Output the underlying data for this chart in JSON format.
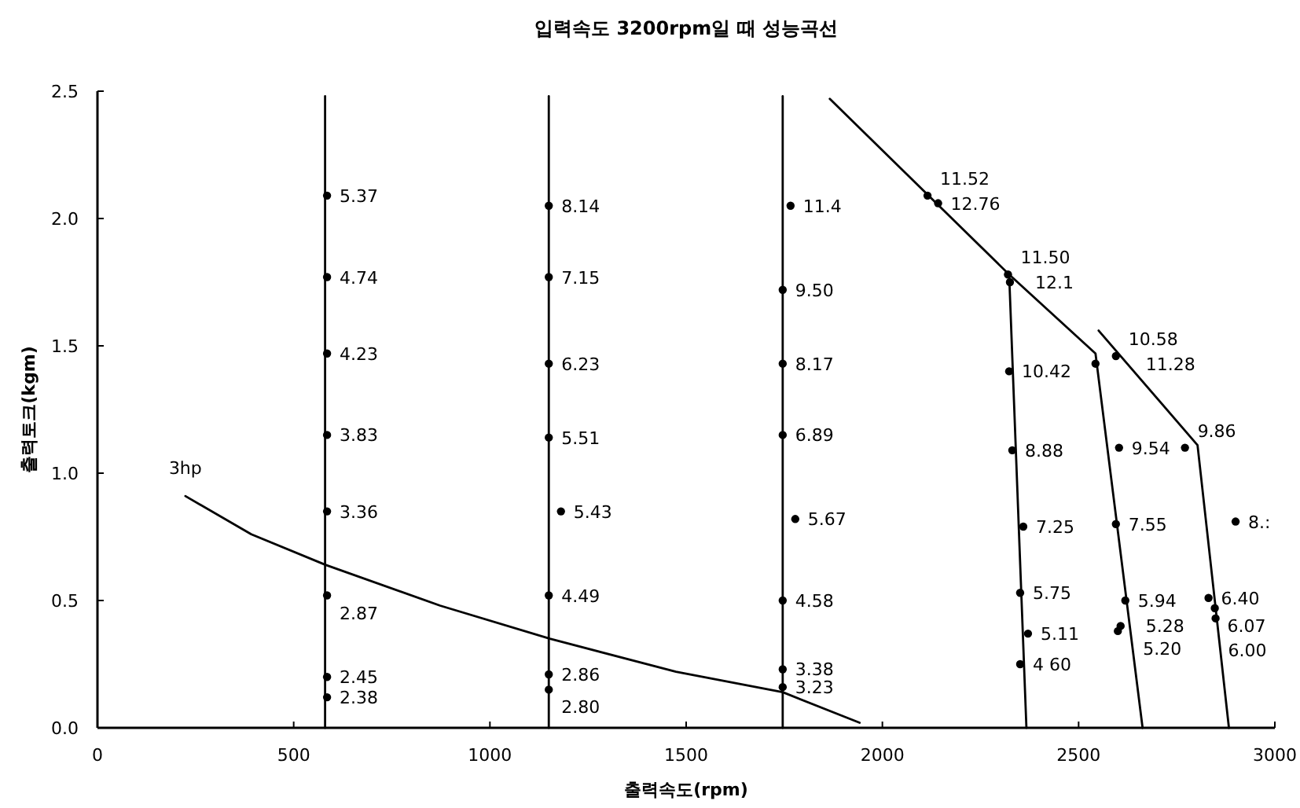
{
  "chart_data": {
    "type": "scatter",
    "title": "입력속도 3200rpm일 때 성능곡선",
    "xlabel": "출력속도(rpm)",
    "ylabel": "출력토크(kgm)",
    "xlim": [
      0,
      3000
    ],
    "xticks": [
      0,
      500,
      1000,
      1500,
      2000,
      2500,
      3000
    ],
    "ylim": [
      0,
      2.5
    ],
    "yticks": [
      {
        "value": 0,
        "label": "0.0"
      },
      {
        "value": 0.5,
        "label": "0.5"
      },
      {
        "value": 1,
        "label": "1.0"
      },
      {
        "value": 1.5,
        "label": "1.5"
      },
      {
        "value": 2,
        "label": "2.0"
      },
      {
        "value": 2.5,
        "label": "2.5"
      }
    ],
    "grid": false,
    "legend": false,
    "series": [
      {
        "type": "line",
        "color": "#000000",
        "x": [
          580,
          580
        ],
        "values": [
          0,
          2.48
        ]
      },
      {
        "type": "line",
        "color": "#000000",
        "x": [
          1150,
          1150
        ],
        "values": [
          0,
          2.48
        ]
      },
      {
        "type": "line",
        "color": "#000000",
        "x": [
          1746,
          1746
        ],
        "values": [
          0,
          2.48
        ]
      },
      {
        "type": "line",
        "color": "#000000",
        "x": [
          1866,
          2323,
          2543,
          2663
        ],
        "values": [
          2.47,
          1.78,
          1.47,
          0
        ]
      },
      {
        "type": "line",
        "color": "#000000",
        "x": [
          2323,
          2367
        ],
        "values": [
          1.78,
          0
        ]
      },
      {
        "type": "line",
        "color": "#000000",
        "x": [
          2551,
          2803,
          2883
        ],
        "values": [
          1.56,
          1.11,
          0
        ]
      },
      {
        "type": "line",
        "name": "3hp",
        "color": "#000000",
        "x": [
          224,
          392,
          581,
          873,
          1153,
          1474,
          1746,
          1942
        ],
        "values": [
          0.91,
          0.76,
          0.64,
          0.48,
          0.35,
          0.22,
          0.14,
          0.02
        ]
      },
      {
        "marker": "circle",
        "color": "#000000",
        "x": [
          585,
          585,
          585,
          585,
          585,
          585,
          585,
          585,
          1150,
          1150,
          1150,
          1150,
          1181,
          1150,
          1150,
          1150,
          1766,
          1746,
          1746,
          1746,
          1778,
          1746,
          1746,
          1746,
          2115,
          2142,
          2320,
          2325,
          2323,
          2331,
          2359,
          2351,
          2371,
          2351,
          2595,
          2543,
          2603,
          2595,
          2619,
          2607,
          2600,
          2771,
          2900,
          2831,
          2847,
          2849
        ],
        "values": [
          2.09,
          1.77,
          1.47,
          1.15,
          0.85,
          0.52,
          0.2,
          0.12,
          2.05,
          1.77,
          1.43,
          1.14,
          0.85,
          0.52,
          0.21,
          0.15,
          2.05,
          1.72,
          1.43,
          1.15,
          0.82,
          0.5,
          0.23,
          0.16,
          2.09,
          2.06,
          1.78,
          1.75,
          1.4,
          1.09,
          0.79,
          0.53,
          0.37,
          0.25,
          1.46,
          1.43,
          1.1,
          0.8,
          0.5,
          0.4,
          0.38,
          1.1,
          0.81,
          0.51,
          0.47,
          0.43
        ],
        "name": null
      }
    ],
    "annotations": [
      {
        "text": "5.37",
        "x": 585,
        "y": 2.09
      },
      {
        "text": "4.74",
        "x": 585,
        "y": 1.77
      },
      {
        "text": "4.23",
        "x": 585,
        "y": 1.47
      },
      {
        "text": "3.83",
        "x": 585,
        "y": 1.15
      },
      {
        "text": "3.36",
        "x": 585,
        "y": 0.85
      },
      {
        "text": "2.87",
        "x": 585,
        "y": 0.52
      },
      {
        "text": "2.45",
        "x": 585,
        "y": 0.2
      },
      {
        "text": "2.38",
        "x": 585,
        "y": 0.12
      },
      {
        "text": "8.14",
        "x": 1150,
        "y": 2.05
      },
      {
        "text": "7.15",
        "x": 1150,
        "y": 1.77
      },
      {
        "text": "6.23",
        "x": 1150,
        "y": 1.43
      },
      {
        "text": "5.51",
        "x": 1150,
        "y": 1.14
      },
      {
        "text": "5.43",
        "x": 1181,
        "y": 0.85
      },
      {
        "text": "4.49",
        "x": 1150,
        "y": 0.52
      },
      {
        "text": "2.86",
        "x": 1150,
        "y": 0.21
      },
      {
        "text": "2.80",
        "x": 1150,
        "y": 0.15
      },
      {
        "text": "11.4",
        "x": 1766,
        "y": 2.05
      },
      {
        "text": "9.50",
        "x": 1746,
        "y": 1.72
      },
      {
        "text": "8.17",
        "x": 1746,
        "y": 1.43
      },
      {
        "text": "6.89",
        "x": 1746,
        "y": 1.15
      },
      {
        "text": "5.67",
        "x": 1778,
        "y": 0.82
      },
      {
        "text": "4.58",
        "x": 1746,
        "y": 0.5
      },
      {
        "text": "3.38",
        "x": 1746,
        "y": 0.23
      },
      {
        "text": "3.23",
        "x": 1746,
        "y": 0.16
      },
      {
        "text": "11.52",
        "x": 2115,
        "y": 2.09
      },
      {
        "text": "12.76",
        "x": 2142,
        "y": 2.06
      },
      {
        "text": "11.50",
        "x": 2320,
        "y": 1.78
      },
      {
        "text": "12.1",
        "x": 2325,
        "y": 1.75
      },
      {
        "text": "10.42",
        "x": 2323,
        "y": 1.4
      },
      {
        "text": "8.88",
        "x": 2331,
        "y": 1.09
      },
      {
        "text": "7.25",
        "x": 2359,
        "y": 0.79
      },
      {
        "text": "5.75",
        "x": 2351,
        "y": 0.53
      },
      {
        "text": "5.11",
        "x": 2371,
        "y": 0.37
      },
      {
        "text": "4 60",
        "x": 2351,
        "y": 0.25
      },
      {
        "text": "10.58",
        "x": 2595,
        "y": 1.46
      },
      {
        "text": "11.28",
        "x": 2543,
        "y": 1.43
      },
      {
        "text": "9.54",
        "x": 2603,
        "y": 1.1
      },
      {
        "text": "7.55",
        "x": 2595,
        "y": 0.8
      },
      {
        "text": "5.94",
        "x": 2619,
        "y": 0.5
      },
      {
        "text": "5.28",
        "x": 2607,
        "y": 0.4
      },
      {
        "text": "5.20",
        "x": 2600,
        "y": 0.38
      },
      {
        "text": "9.86",
        "x": 2771,
        "y": 1.1
      },
      {
        "text": "8.:",
        "x": 2900,
        "y": 0.81
      },
      {
        "text": "6.40",
        "x": 2831,
        "y": 0.51
      },
      {
        "text": "6.07",
        "x": 2847,
        "y": 0.47
      },
      {
        "text": "6.00",
        "x": 2849,
        "y": 0.43
      }
    ]
  }
}
